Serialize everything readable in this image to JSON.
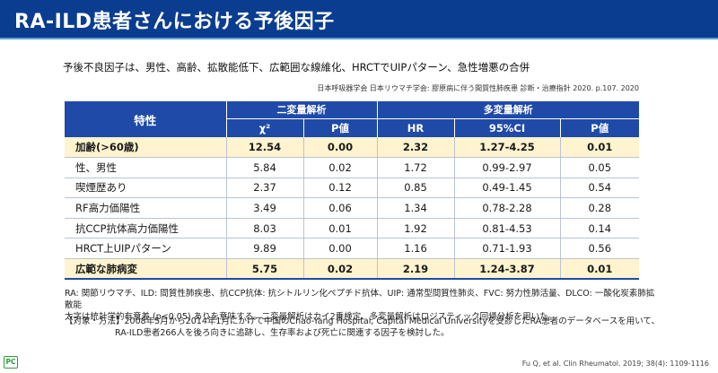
{
  "header": {
    "title": "RA-ILD患者さんにおける予後因子"
  },
  "subtitle": "予後不良因子は、男性、高齢、拡散能低下、広範囲な線維化、HRCTでUIPパターン、急性増悪の合併",
  "source_jp": "日本呼吸器学会 日本リウマチ学会: 膠原病に伴う間質性肺疾患 診断・治療指針 2020. p.107. 2020",
  "table": {
    "feature_header": "特性",
    "group_uni": "二変量解析",
    "group_multi": "多変量解析",
    "columns": [
      "χ²",
      "P値",
      "HR",
      "95%CI",
      "P値"
    ],
    "rows": [
      {
        "feature": "加齢(>60歳)",
        "chi2": "12.54",
        "p1": "0.00",
        "hr": "2.32",
        "ci": "1.27-4.25",
        "p2": "0.01",
        "highlight": true
      },
      {
        "feature": "性、男性",
        "chi2": "5.84",
        "p1": "0.02",
        "hr": "1.72",
        "ci": "0.99-2.97",
        "p2": "0.05",
        "highlight": false
      },
      {
        "feature": "喫煙歴あり",
        "chi2": "2.37",
        "p1": "0.12",
        "hr": "0.85",
        "ci": "0.49-1.45",
        "p2": "0.54",
        "highlight": false
      },
      {
        "feature": "RF高力価陽性",
        "chi2": "3.49",
        "p1": "0.06",
        "hr": "1.34",
        "ci": "0.78-2.28",
        "p2": "0.28",
        "highlight": false
      },
      {
        "feature": "抗CCP抗体高力価陽性",
        "chi2": "8.03",
        "p1": "0.01",
        "hr": "1.92",
        "ci": "0.81-4.53",
        "p2": "0.14",
        "highlight": false
      },
      {
        "feature": "HRCT上UIPパターン",
        "chi2": "9.89",
        "p1": "0.00",
        "hr": "1.16",
        "ci": "0.71-1.93",
        "p2": "0.56",
        "highlight": false
      },
      {
        "feature": "広範な肺病変",
        "chi2": "5.75",
        "p1": "0.02",
        "hr": "2.19",
        "ci": "1.24-3.87",
        "p2": "0.01",
        "highlight": true
      }
    ]
  },
  "footnote": {
    "line1": "RA: 関節リウマチ、ILD: 間質性肺疾患、抗CCP抗体: 抗シトルリン化ペプチド抗体、UIP: 通常型間質性肺炎、FVC: 努力性肺活量、DLCO: 一酸化炭素肺拡散能",
    "line2": "太字は統計学的有意差 (p<0.05) ありを意味する。二変量解析はカイ2乗検定、多変量解析はロジスティック回帰分析を用いた。"
  },
  "method": {
    "line1": "【対象・方法】2008年5月から2014年1月にかけて中国のChao-Yang Hospital, Capital Medical Universityを受診したRA患者のデータベースを用いて、",
    "line2": "RA-ILD患者266人を後ろ向きに追跡し、生存率および死亡に関連する因子を検討した。"
  },
  "citation": "Fu Q, et al. Clin Rheumatol. 2019; 38(4): 1109-1116",
  "logo_text": "PC",
  "colors": {
    "header_bg": "#0a3d8f",
    "table_header_bg": "#1f4aa8",
    "highlight_row": "#fff4cf",
    "logo": "#2f9a3a"
  }
}
